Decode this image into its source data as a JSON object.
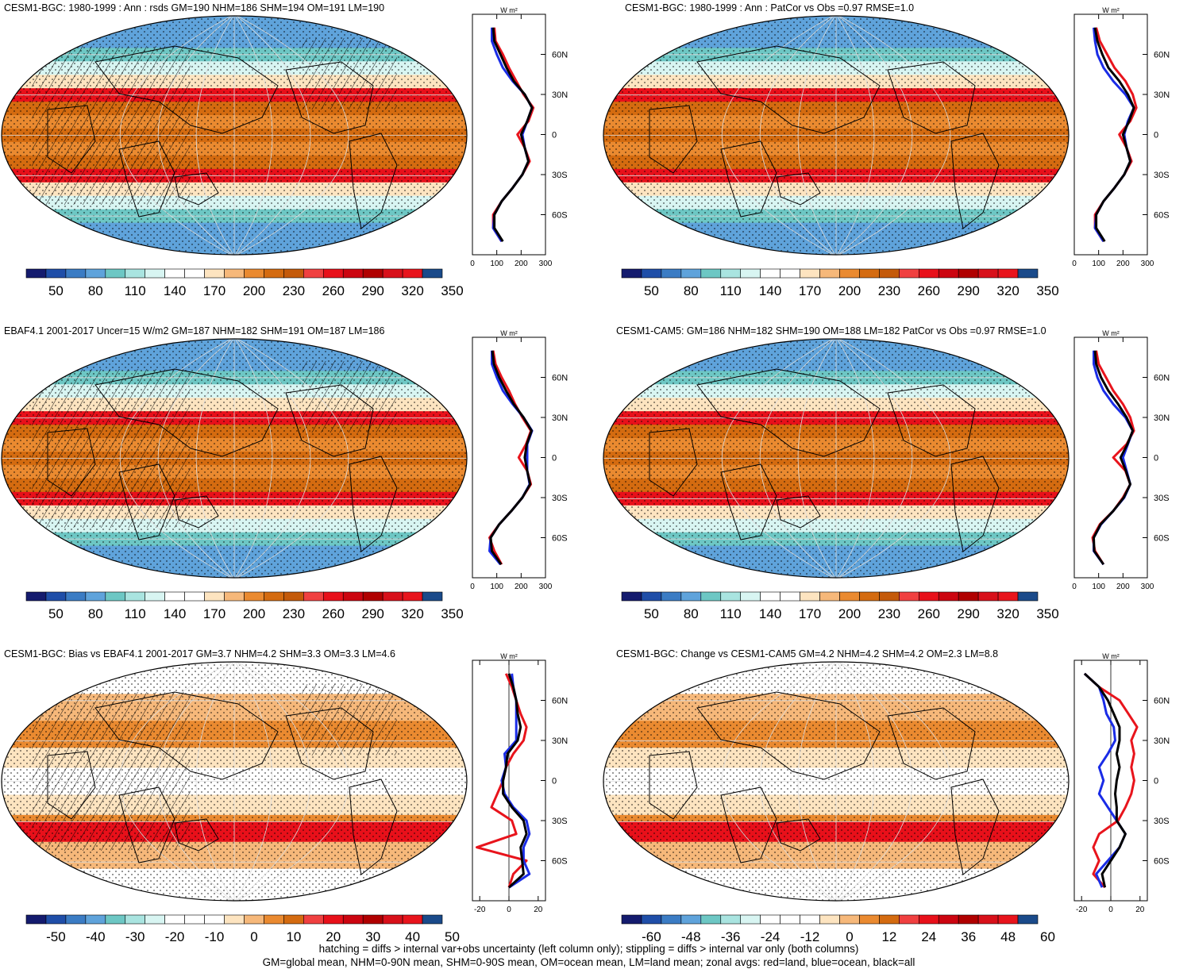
{
  "footer": {
    "line1": "hatching = diffs > internal var+obs uncertainty (left column only); stippling = diffs > internal var only (both columns)",
    "line2": "GM=global mean, NHM=0-90N mean, SHM=0-90S mean, OM=ocean mean, LM=land mean; zonal avgs: red=land, blue=ocean, black=all"
  },
  "colors": {
    "land": "#e8141c",
    "ocean": "#1a2ce6",
    "all": "#000000"
  },
  "chart_data": [
    {
      "type": "heatmap",
      "title": "CESM1-BGC: 1980-1999 : Ann : rsds GM=190 NHM=186 SHM=194 OM=191 LM=190",
      "field": "abs",
      "hatching": true,
      "colorbar_labels": [
        "50",
        "80",
        "110",
        "140",
        "170",
        "200",
        "230",
        "260",
        "290",
        "320",
        "350"
      ],
      "zonal": {
        "unit": "W m²",
        "xlim": [
          0,
          300
        ],
        "xticks": [
          "0",
          "100",
          "200",
          "300"
        ],
        "lat_ticks": [
          "60N",
          "30N",
          "0",
          "30S",
          "60S"
        ],
        "lat": [
          80,
          70,
          60,
          50,
          40,
          30,
          20,
          10,
          0,
          -10,
          -20,
          -30,
          -40,
          -50,
          -60,
          -70,
          -80
        ],
        "land": [
          90,
          95,
          125,
          150,
          180,
          210,
          250,
          230,
          185,
          215,
          235,
          205,
          165,
          120,
          85,
          85,
          120
        ],
        "ocean": [
          80,
          80,
          100,
          125,
          165,
          215,
          245,
          225,
          205,
          215,
          230,
          205,
          165,
          120,
          90,
          85,
          120
        ],
        "all": [
          85,
          90,
          115,
          140,
          170,
          215,
          245,
          225,
          200,
          215,
          230,
          205,
          165,
          120,
          90,
          90,
          125
        ]
      }
    },
    {
      "type": "heatmap",
      "title": "CESM1-BGC: 1980-1999 : Ann : PatCor vs Obs =0.97 RMSE=1.0",
      "field": "abs",
      "hatching": false,
      "colorbar_labels": [
        "50",
        "80",
        "110",
        "140",
        "170",
        "200",
        "230",
        "260",
        "290",
        "320",
        "350"
      ],
      "zonal": {
        "unit": "W m²",
        "xlim": [
          0,
          300
        ],
        "xticks": [
          "0",
          "100",
          "200",
          "300"
        ],
        "lat_ticks": [
          "60N",
          "30N",
          "0",
          "30S",
          "60S"
        ],
        "lat": [
          80,
          70,
          60,
          50,
          40,
          30,
          20,
          10,
          0,
          -10,
          -20,
          -30,
          -40,
          -50,
          -60,
          -70,
          -80
        ],
        "land": [
          90,
          105,
          135,
          165,
          210,
          240,
          255,
          230,
          185,
          215,
          235,
          205,
          165,
          120,
          85,
          85,
          120
        ],
        "ocean": [
          80,
          85,
          95,
          120,
          160,
          210,
          245,
          220,
          205,
          215,
          230,
          205,
          165,
          120,
          90,
          85,
          120
        ],
        "all": [
          85,
          95,
          115,
          140,
          185,
          220,
          245,
          225,
          200,
          215,
          230,
          205,
          165,
          120,
          90,
          90,
          125
        ]
      }
    },
    {
      "type": "heatmap",
      "title": "EBAF4.1 2001-2017 Uncer=15 W/m2 GM=187 NHM=182 SHM=191 OM=187 LM=186",
      "field": "abs",
      "hatching": true,
      "colorbar_labels": [
        "50",
        "80",
        "110",
        "140",
        "170",
        "200",
        "230",
        "260",
        "290",
        "320",
        "350"
      ],
      "zonal": {
        "unit": "W m²",
        "xlim": [
          0,
          300
        ],
        "xticks": [
          "0",
          "100",
          "200",
          "300"
        ],
        "lat_ticks": [
          "60N",
          "30N",
          "0",
          "30S",
          "60S"
        ],
        "lat": [
          80,
          70,
          60,
          50,
          40,
          30,
          20,
          10,
          0,
          -10,
          -20,
          -30,
          -40,
          -50,
          -60,
          -70,
          -80
        ],
        "land": [
          85,
          95,
          120,
          150,
          175,
          205,
          240,
          220,
          190,
          225,
          240,
          205,
          160,
          110,
          70,
          90,
          120
        ],
        "ocean": [
          80,
          80,
          100,
          125,
          165,
          210,
          245,
          225,
          225,
          225,
          235,
          205,
          160,
          110,
          75,
          70,
          115
        ],
        "all": [
          82,
          88,
          110,
          138,
          170,
          210,
          243,
          223,
          215,
          225,
          237,
          205,
          160,
          110,
          75,
          80,
          118
        ]
      }
    },
    {
      "type": "heatmap",
      "title": "CESM1-CAM5: GM=186 NHM=182 SHM=190 OM=188 LM=182 PatCor vs Obs =0.97 RMSE=1.0",
      "field": "abs",
      "hatching": false,
      "colorbar_labels": [
        "50",
        "80",
        "110",
        "140",
        "170",
        "200",
        "230",
        "260",
        "290",
        "320",
        "350"
      ],
      "zonal": {
        "unit": "W m²",
        "xlim": [
          0,
          300
        ],
        "xticks": [
          "0",
          "100",
          "200",
          "300"
        ],
        "lat_ticks": [
          "60N",
          "30N",
          "0",
          "30S",
          "60S"
        ],
        "lat": [
          80,
          70,
          60,
          50,
          40,
          30,
          20,
          10,
          0,
          -10,
          -20,
          -30,
          -40,
          -50,
          -60,
          -70,
          -80
        ],
        "land": [
          90,
          100,
          130,
          160,
          200,
          230,
          245,
          215,
          160,
          210,
          230,
          200,
          160,
          105,
          75,
          85,
          120
        ],
        "ocean": [
          80,
          80,
          95,
          120,
          160,
          210,
          240,
          220,
          200,
          215,
          230,
          205,
          160,
          110,
          80,
          80,
          120
        ],
        "all": [
          85,
          90,
          110,
          140,
          180,
          215,
          240,
          218,
          190,
          212,
          230,
          203,
          160,
          108,
          80,
          82,
          120
        ]
      }
    },
    {
      "type": "heatmap",
      "title": "CESM1-BGC: Bias vs EBAF4.1 2001-2017 GM=3.7 NHM=4.2 SHM=3.3 OM=3.3 LM=4.6",
      "field": "diff",
      "hatching": true,
      "colorbar_labels": [
        "-50",
        "-40",
        "-30",
        "-20",
        "-10",
        "0",
        "10",
        "20",
        "30",
        "40",
        "50"
      ],
      "zonal": {
        "unit": "W m²",
        "xlim": [
          -25,
          25
        ],
        "xticks": [
          "-20",
          "0",
          "20"
        ],
        "lat_ticks": [
          "60N",
          "30N",
          "0",
          "30S",
          "60S"
        ],
        "lat": [
          80,
          70,
          60,
          50,
          40,
          30,
          20,
          10,
          0,
          -10,
          -20,
          -30,
          -40,
          -50,
          -60,
          -70,
          -80
        ],
        "land": [
          -2,
          2,
          5,
          8,
          12,
          10,
          3,
          -2,
          -4,
          -8,
          -12,
          2,
          5,
          -22,
          12,
          3,
          0
        ],
        "ocean": [
          2,
          3,
          5,
          5,
          5,
          5,
          -3,
          -2,
          -5,
          -3,
          3,
          12,
          14,
          10,
          10,
          14,
          0
        ],
        "all": [
          0,
          3,
          5,
          6,
          8,
          6,
          -1,
          -2,
          -4,
          -4,
          2,
          10,
          12,
          8,
          9,
          10,
          0
        ]
      }
    },
    {
      "type": "heatmap",
      "title": "CESM1-BGC: Change vs CESM1-CAM5 GM=4.2 NHM=4.2 SHM=4.2 OM=2.3 LM=8.8",
      "field": "diff",
      "hatching": false,
      "colorbar_labels": [
        "-60",
        "-48",
        "-36",
        "-24",
        "-12",
        "0",
        "12",
        "24",
        "36",
        "48",
        "60"
      ],
      "zonal": {
        "unit": "W m²",
        "xlim": [
          -25,
          25
        ],
        "xticks": [
          "-20",
          "0",
          "20"
        ],
        "lat_ticks": [
          "60N",
          "30N",
          "0",
          "30S",
          "60S"
        ],
        "lat": [
          80,
          70,
          60,
          50,
          40,
          30,
          20,
          10,
          0,
          -10,
          -20,
          -30,
          -40,
          -50,
          -60,
          -70,
          -80
        ],
        "land": [
          -18,
          -8,
          6,
          12,
          18,
          14,
          16,
          14,
          16,
          14,
          10,
          5,
          -8,
          -12,
          -8,
          -12,
          -4
        ],
        "ocean": [
          -18,
          -8,
          -5,
          -3,
          2,
          3,
          -2,
          -8,
          -5,
          -8,
          -2,
          4,
          10,
          6,
          -2,
          -10,
          -6
        ],
        "all": [
          -18,
          -8,
          -2,
          2,
          6,
          6,
          4,
          6,
          4,
          3,
          4,
          4,
          10,
          6,
          0,
          -6,
          -4
        ]
      }
    }
  ]
}
